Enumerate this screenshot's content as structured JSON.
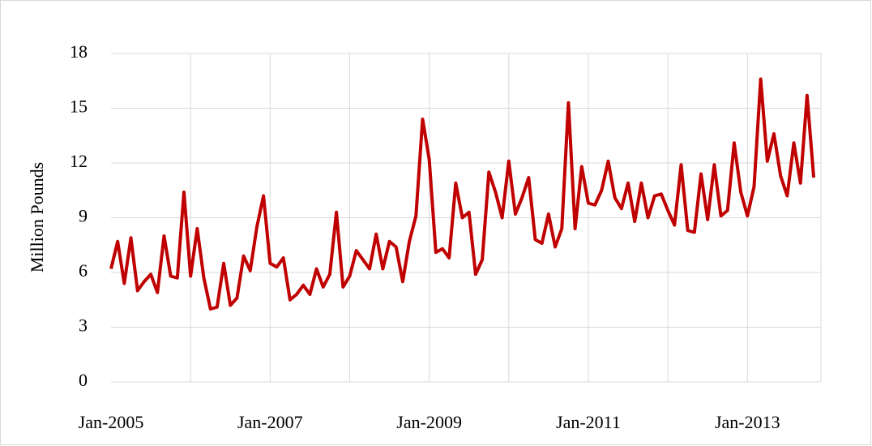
{
  "chart_data": {
    "type": "line",
    "y_label": "Million Pounds",
    "categories": [
      "Jan-2005",
      null,
      null,
      null,
      null,
      null,
      null,
      null,
      null,
      null,
      null,
      null,
      null,
      null,
      null,
      null,
      null,
      null,
      null,
      null,
      null,
      null,
      null,
      null,
      "Jan-2007",
      null,
      null,
      null,
      null,
      null,
      null,
      null,
      null,
      null,
      null,
      null,
      null,
      null,
      null,
      null,
      null,
      null,
      null,
      null,
      null,
      null,
      null,
      null,
      "Jan-2009",
      null,
      null,
      null,
      null,
      null,
      null,
      null,
      null,
      null,
      null,
      null,
      null,
      null,
      null,
      null,
      null,
      null,
      null,
      null,
      null,
      null,
      null,
      null,
      "Jan-2011",
      null,
      null,
      null,
      null,
      null,
      null,
      null,
      null,
      null,
      null,
      null,
      null,
      null,
      null,
      null,
      null,
      null,
      null,
      null,
      null,
      null,
      null,
      null,
      "Jan-2013",
      null,
      null,
      null,
      null,
      null,
      null,
      null,
      null,
      null,
      null
    ],
    "series": [
      {
        "name": "Million Pounds",
        "color": "#c00000",
        "values": [
          6.2,
          7.7,
          5.4,
          7.9,
          5.0,
          5.5,
          5.9,
          4.9,
          8.0,
          5.8,
          5.7,
          10.4,
          5.8,
          8.4,
          5.7,
          4.0,
          4.1,
          6.5,
          4.2,
          4.6,
          6.9,
          6.1,
          8.5,
          10.2,
          6.5,
          6.3,
          6.8,
          4.5,
          4.8,
          5.3,
          4.8,
          6.2,
          5.2,
          5.9,
          9.3,
          5.2,
          5.8,
          7.2,
          6.7,
          6.2,
          8.1,
          6.2,
          7.7,
          7.4,
          5.5,
          7.7,
          9.1,
          14.4,
          12.2,
          7.1,
          7.3,
          6.8,
          10.9,
          9.0,
          9.3,
          5.9,
          6.7,
          11.5,
          10.4,
          9.0,
          12.1,
          9.2,
          10.1,
          11.2,
          7.8,
          7.6,
          9.2,
          7.4,
          8.4,
          15.3,
          8.4,
          11.8,
          9.8,
          9.7,
          10.5,
          12.1,
          10.1,
          9.5,
          10.9,
          8.8,
          10.9,
          9.0,
          10.2,
          10.3,
          9.4,
          8.6,
          11.9,
          8.3,
          8.2,
          11.4,
          8.9,
          11.9,
          9.1,
          9.4,
          13.1,
          10.4,
          9.1,
          10.7,
          16.6,
          12.1,
          13.6,
          11.3,
          10.2,
          13.1,
          10.9,
          15.7,
          11.2
        ]
      }
    ],
    "ylim": [
      0,
      18
    ],
    "yticks": [
      0,
      3,
      6,
      9,
      12,
      15,
      18
    ],
    "grid": true
  }
}
